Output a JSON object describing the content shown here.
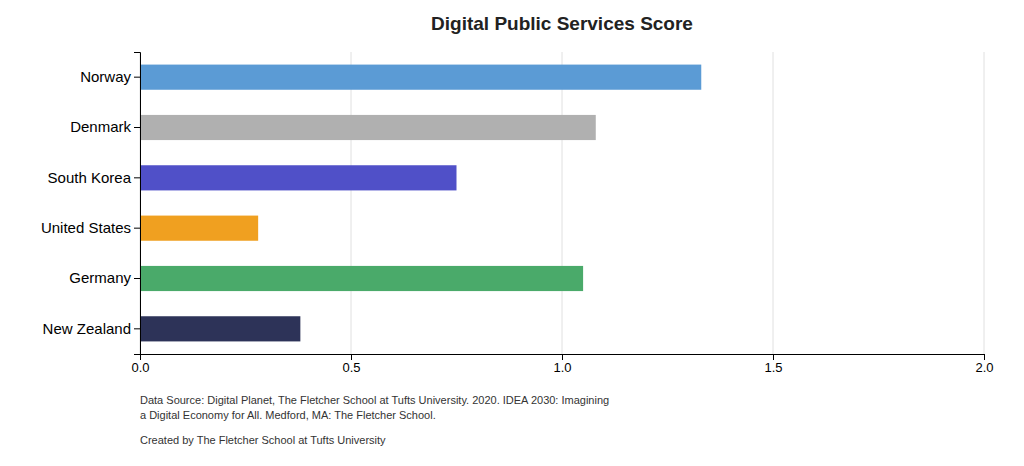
{
  "chart_data": {
    "type": "bar",
    "orientation": "horizontal",
    "title": "Digital Public Services Score",
    "categories": [
      "Norway",
      "Denmark",
      "South Korea",
      "United States",
      "Germany",
      "New Zealand"
    ],
    "values": [
      1.33,
      1.08,
      0.75,
      0.28,
      1.05,
      0.38
    ],
    "colors": [
      "#5b9bd5",
      "#b0b0b0",
      "#5050c8",
      "#f0a020",
      "#4aaa6a",
      "#2d3358"
    ],
    "xlim": [
      0,
      2.0
    ],
    "xticks": [
      {
        "value": 0,
        "label": "0.0"
      },
      0.5,
      {
        "value": 1,
        "label": "1.0"
      },
      1.5,
      {
        "value": 2,
        "label": "2.0"
      }
    ],
    "grid": true,
    "annotations": [
      "Data Source: Digital Planet, The Fletcher School at Tufts University. 2020. IDEA 2030: Imagining",
      "a Digital Economy for All. Medford, MA: The Fletcher School.",
      "Created by The Fletcher School at Tufts University"
    ]
  }
}
